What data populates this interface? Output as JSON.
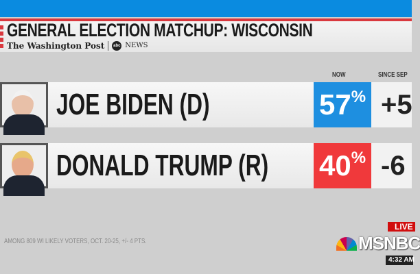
{
  "header": {
    "title": "GENERAL ELECTION MATCHUP: WISCONSIN",
    "source1": "The Washington Post",
    "source2_logo": "abc",
    "source2": "NEWS"
  },
  "columns": {
    "now": "NOW",
    "since": "SINCE SEP"
  },
  "candidates": [
    {
      "name": "JOE BIDEN (D)",
      "now": "57",
      "pct_sign": "%",
      "change": "+5",
      "color": "#1e8fe0"
    },
    {
      "name": "DONALD TRUMP (R)",
      "now": "40",
      "pct_sign": "%",
      "change": "-6",
      "color": "#f0393b"
    }
  ],
  "footnote": "AMONG 809 WI LIKELY VOTERS, OCT. 20-25, +/- 4 PTS.",
  "network": {
    "live": "LIVE",
    "name": "MSNBC",
    "time": "4:32 AM"
  }
}
